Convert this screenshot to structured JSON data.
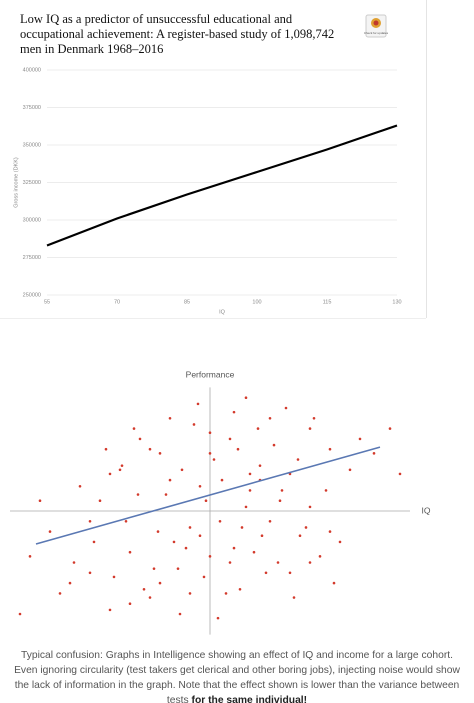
{
  "chart_data": [
    {
      "type": "line",
      "title": "Low IQ as a predictor of unsuccessful educational and occupational achievement: A register-based study of 1,098,742 men in Denmark 1968–2016",
      "badge": "Check for updates",
      "x": [
        55,
        70,
        85,
        100,
        115,
        130
      ],
      "values": [
        283000,
        301000,
        317000,
        332000,
        347000,
        363000
      ],
      "color": "#000000",
      "xlim": [
        55,
        130
      ],
      "xticks": [
        55,
        70,
        85,
        100,
        115,
        130
      ],
      "ylim": [
        250000,
        400000
      ],
      "yticks": [
        250000,
        275000,
        300000,
        325000,
        350000,
        375000,
        400000
      ],
      "x_label": "IQ",
      "y_label": "Gross income (DKK)",
      "grid": true
    },
    {
      "type": "scatter",
      "x": [
        -60,
        -45,
        -30,
        -20,
        -10,
        0,
        10,
        20,
        30,
        45,
        60,
        -70,
        -55,
        -40,
        -25,
        -15,
        -5,
        5,
        15,
        25,
        35,
        50,
        65,
        -80,
        -50,
        -35,
        -12,
        2,
        12,
        28,
        40,
        55,
        75,
        -65,
        -42,
        -28,
        -8,
        8,
        18,
        32,
        48,
        70,
        -90,
        -52,
        -38,
        -18,
        -3,
        6,
        22,
        38,
        58,
        82,
        -75,
        -48,
        -22,
        -6,
        14,
        26,
        44,
        62,
        -58,
        -33,
        -14,
        0,
        16,
        34,
        52,
        -44,
        -26,
        -2,
        10,
        24,
        42,
        -36,
        -16,
        4,
        20,
        36,
        -85,
        90,
        -95,
        -30,
        -10,
        12,
        30,
        50,
        -20,
        0,
        18,
        -5,
        -40,
        40,
        -60,
        60,
        -25,
        25,
        -50,
        50,
        95,
        -68
      ],
      "values": [
        -30,
        20,
        -42,
        15,
        -8,
        38,
        -25,
        10,
        45,
        -12,
        30,
        -35,
        5,
        -20,
        28,
        -50,
        12,
        -5,
        -38,
        22,
        5,
        40,
        -15,
        -10,
        -48,
        35,
        -18,
        25,
        48,
        -30,
        18,
        -22,
        35,
        12,
        -5,
        -28,
        42,
        -40,
        2,
        32,
        -8,
        20,
        -22,
        30,
        40,
        -15,
        -32,
        15,
        -20,
        50,
        10,
        28,
        -40,
        -32,
        8,
        52,
        30,
        -12,
        25,
        -35,
        -15,
        -38,
        20,
        -22,
        -8,
        -25,
        45,
        22,
        -10,
        5,
        35,
        40,
        -42,
        8,
        -28,
        -52,
        18,
        10,
        5,
        40,
        -50,
        30,
        -40,
        -18,
        -5,
        2,
        45,
        28,
        55,
        -12,
        -45,
        -30,
        -5,
        -10,
        -35,
        15,
        18,
        -25,
        18,
        -25
      ],
      "color": "#d33a2c",
      "trend": {
        "x": [
          -87,
          85
        ],
        "values": [
          -16,
          31
        ],
        "color": "#5a78b3"
      },
      "xlim": [
        -100,
        100
      ],
      "ylim": [
        -60,
        60
      ],
      "x_label": "IQ",
      "y_label": "Performance"
    }
  ],
  "caption": {
    "text": "Typical confusion: Graphs in Intelligence showing an effect of IQ and income for a large cohort. Even ignoring circularity (test takers get clerical and other boring jobs), injecting noise would show the lack of information in the graph. Note that the effect shown is lower than the variance between tests",
    "bold": "for the same individual!"
  }
}
